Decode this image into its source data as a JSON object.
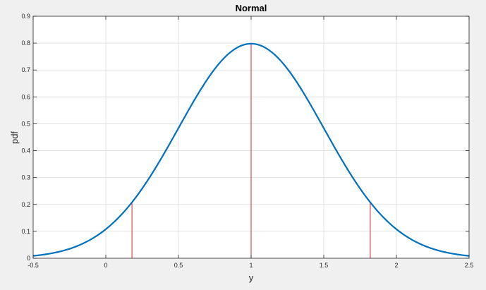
{
  "chart_data": {
    "type": "line",
    "title": "Normal",
    "xlabel": "y",
    "ylabel": "pdf",
    "xlim": [
      -0.5,
      2.5
    ],
    "ylim": [
      0,
      0.9
    ],
    "xticks": [
      -0.5,
      0,
      0.5,
      1,
      1.5,
      2,
      2.5
    ],
    "xtick_labels": [
      "-0.5",
      "0",
      "0.5",
      "1",
      "1.5",
      "2",
      "2.5"
    ],
    "yticks": [
      0,
      0.1,
      0.2,
      0.3,
      0.4,
      0.5,
      0.6,
      0.7,
      0.8,
      0.9
    ],
    "ytick_labels": [
      "0",
      "0.1",
      "0.2",
      "0.3",
      "0.4",
      "0.5",
      "0.6",
      "0.7",
      "0.8",
      "0.9"
    ],
    "grid": true,
    "series": [
      {
        "type": "normal-pdf",
        "mu": 1,
        "sigma": 0.5,
        "x_range": [
          -0.5,
          2.5
        ],
        "color": "#0072bd"
      }
    ],
    "vertical_lines": [
      {
        "x": 0.18,
        "y": 0.205,
        "color": "#d62728"
      },
      {
        "x": 1.0,
        "y": 0.798,
        "color": "#d62728"
      },
      {
        "x": 1.82,
        "y": 0.205,
        "color": "#d62728"
      }
    ]
  }
}
